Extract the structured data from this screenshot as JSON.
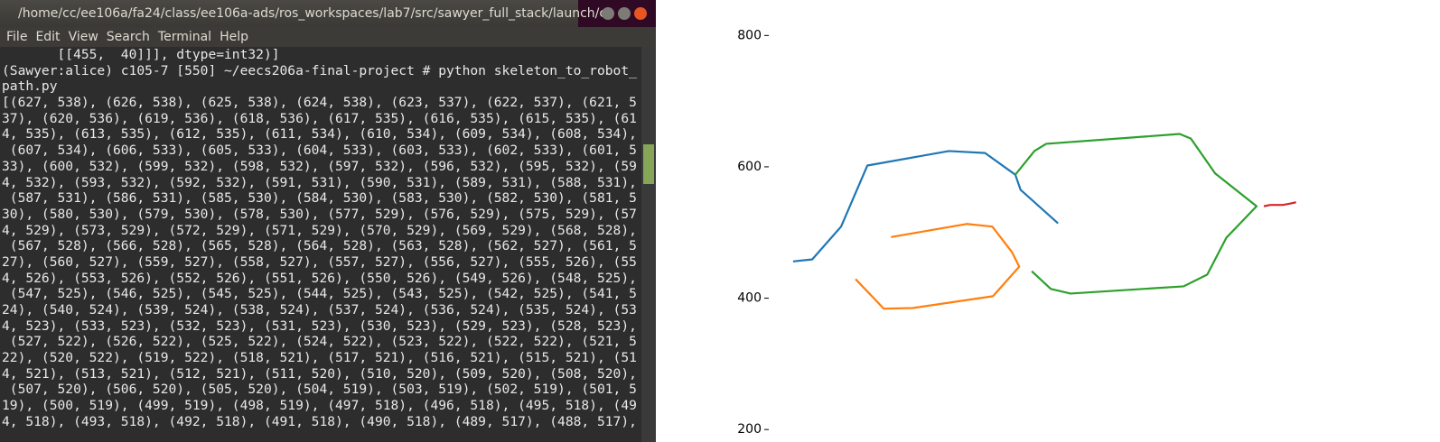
{
  "terminal": {
    "title": "/home/cc/ee106a/fa24/class/ee106a-ads/ros_workspaces/lab7/src/sawyer_full_stack/launch/c",
    "menu": [
      "File",
      "Edit",
      "View",
      "Search",
      "Terminal",
      "Help"
    ],
    "lines": [
      "       [[455,  40]]], dtype=int32)]",
      "(Sawyer:alice) c105-7 [550] ~/eecs206a-final-project # python skeleton_to_robot_",
      "path.py",
      "[(627, 538), (626, 538), (625, 538), (624, 538), (623, 537), (622, 537), (621, 5",
      "37), (620, 536), (619, 536), (618, 536), (617, 535), (616, 535), (615, 535), (61",
      "4, 535), (613, 535), (612, 535), (611, 534), (610, 534), (609, 534), (608, 534),",
      " (607, 534), (606, 533), (605, 533), (604, 533), (603, 533), (602, 533), (601, 5",
      "33), (600, 532), (599, 532), (598, 532), (597, 532), (596, 532), (595, 532), (59",
      "4, 532), (593, 532), (592, 532), (591, 531), (590, 531), (589, 531), (588, 531),",
      " (587, 531), (586, 531), (585, 530), (584, 530), (583, 530), (582, 530), (581, 5",
      "30), (580, 530), (579, 530), (578, 530), (577, 529), (576, 529), (575, 529), (57",
      "4, 529), (573, 529), (572, 529), (571, 529), (570, 529), (569, 529), (568, 528),",
      " (567, 528), (566, 528), (565, 528), (564, 528), (563, 528), (562, 527), (561, 5",
      "27), (560, 527), (559, 527), (558, 527), (557, 527), (556, 527), (555, 526), (55",
      "4, 526), (553, 526), (552, 526), (551, 526), (550, 526), (549, 526), (548, 525),",
      " (547, 525), (546, 525), (545, 525), (544, 525), (543, 525), (542, 525), (541, 5",
      "24), (540, 524), (539, 524), (538, 524), (537, 524), (536, 524), (535, 524), (53",
      "4, 523), (533, 523), (532, 523), (531, 523), (530, 523), (529, 523), (528, 523),",
      " (527, 522), (526, 522), (525, 522), (524, 522), (523, 522), (522, 522), (521, 5",
      "22), (520, 522), (519, 522), (518, 521), (517, 521), (516, 521), (515, 521), (51",
      "4, 521), (513, 521), (512, 521), (511, 520), (510, 520), (509, 520), (508, 520),",
      " (507, 520), (506, 520), (505, 520), (504, 519), (503, 519), (502, 519), (501, 5",
      "19), (500, 519), (499, 519), (498, 519), (497, 518), (496, 518), (495, 518), (49",
      "4, 518), (493, 518), (492, 518), (491, 518), (490, 518), (489, 517), (488, 517),"
    ]
  },
  "chart_data": {
    "type": "line",
    "xlim": [
      0,
      1021
    ],
    "ylim": [
      192,
      854
    ],
    "yticks": [
      200,
      400,
      600,
      800
    ],
    "series": [
      {
        "color": "#1f77b4",
        "x": [
          37,
          66,
          110,
          150,
          274,
          329,
          375,
          383,
          440
        ],
        "values": [
          456,
          459,
          509,
          602,
          624,
          621,
          588,
          565,
          514
        ]
      },
      {
        "color": "#ff7f0e",
        "x": [
          132,
          175,
          219,
          341,
          381,
          370,
          340,
          301,
          186
        ],
        "values": [
          429,
          384,
          385,
          403,
          448,
          470,
          509,
          513,
          493
        ]
      },
      {
        "color": "#2ca02c",
        "x": [
          400,
          429,
          459,
          631,
          667,
          696,
          742,
          679,
          642,
          625,
          422,
          404,
          375
        ],
        "values": [
          441,
          414,
          407,
          418,
          436,
          492,
          540,
          590,
          643,
          650,
          635,
          624,
          588
        ]
      },
      {
        "color": "#d62728",
        "x": [
          753,
          763,
          782,
          793,
          802
        ],
        "values": [
          540,
          542,
          542,
          544,
          546
        ]
      }
    ]
  }
}
